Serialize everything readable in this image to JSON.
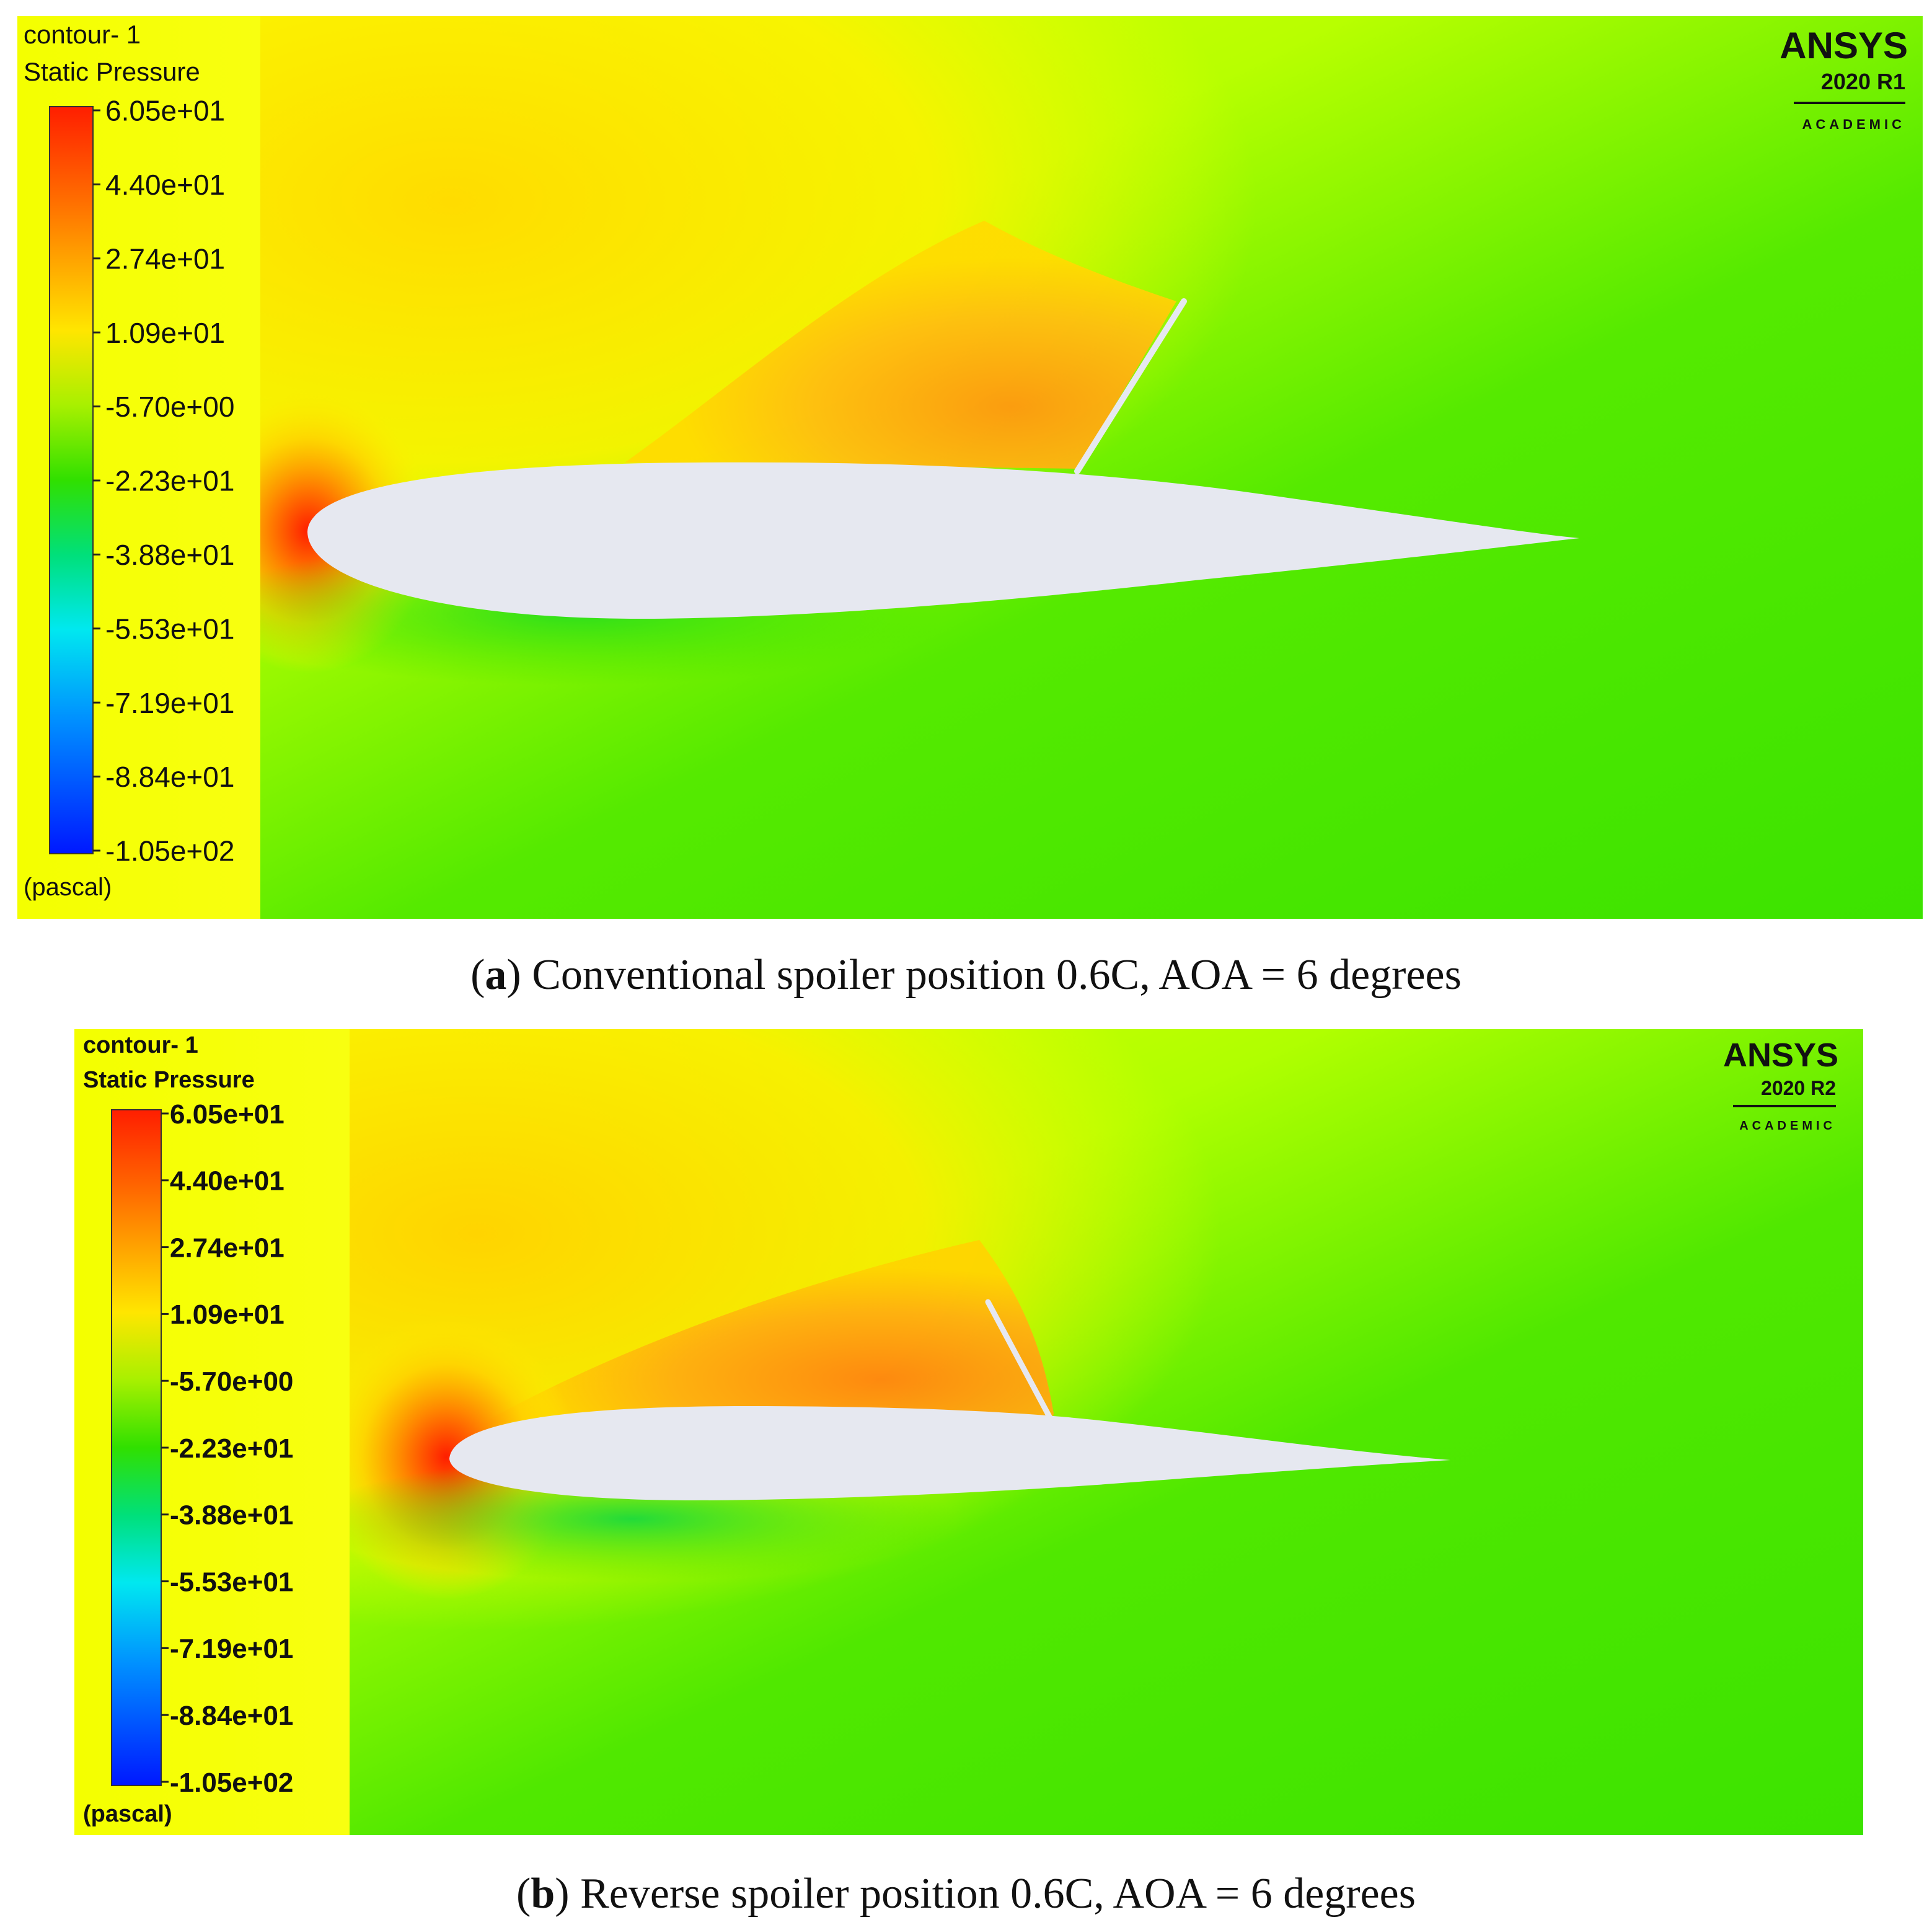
{
  "panels": [
    {
      "id": "a",
      "legend": {
        "title_line1": "contour- 1",
        "title_line2": "Static Pressure",
        "unit": "(pascal)",
        "tick_values": [
          "6.05e+01",
          "4.40e+01",
          "2.74e+01",
          "1.09e+01",
          "-5.70e+00",
          "-2.23e+01",
          "-3.88e+01",
          "-5.53e+01",
          "-7.19e+01",
          "-8.84e+01",
          "-1.05e+02"
        ]
      },
      "brand": {
        "name": "ANSYS",
        "version": "2020 R1",
        "edition": "ACADEMIC"
      },
      "caption": {
        "label": "a",
        "text": "Conventional spoiler position 0.6C, AOA = 6 degrees"
      }
    },
    {
      "id": "b",
      "legend": {
        "title_line1": "contour- 1",
        "title_line2": "Static Pressure",
        "unit": "(pascal)",
        "tick_values": [
          "6.05e+01",
          "4.40e+01",
          "2.74e+01",
          "1.09e+01",
          "-5.70e+00",
          "-2.23e+01",
          "-3.88e+01",
          "-5.53e+01",
          "-7.19e+01",
          "-8.84e+01",
          "-1.05e+02"
        ]
      },
      "brand": {
        "name": "ANSYS",
        "version": "2020 R2",
        "edition": "ACADEMIC"
      },
      "caption": {
        "label": "b",
        "text": "Reverse spoiler position 0.6C, AOA = 6 degrees"
      }
    }
  ],
  "colors": {
    "field_low_pressure": "#39e600",
    "field_high_pressure": "#ffee00",
    "stagnation": "#ff2200",
    "spoiler_region": "#ff9a10",
    "airfoil_fill": "#e6e8f0",
    "colorbar": [
      "#ff1e00",
      "#ff7d00",
      "#ffd800",
      "#b8ff00",
      "#33e000",
      "#00e0a0",
      "#00e8ff",
      "#0090ff",
      "#0020ff"
    ]
  }
}
